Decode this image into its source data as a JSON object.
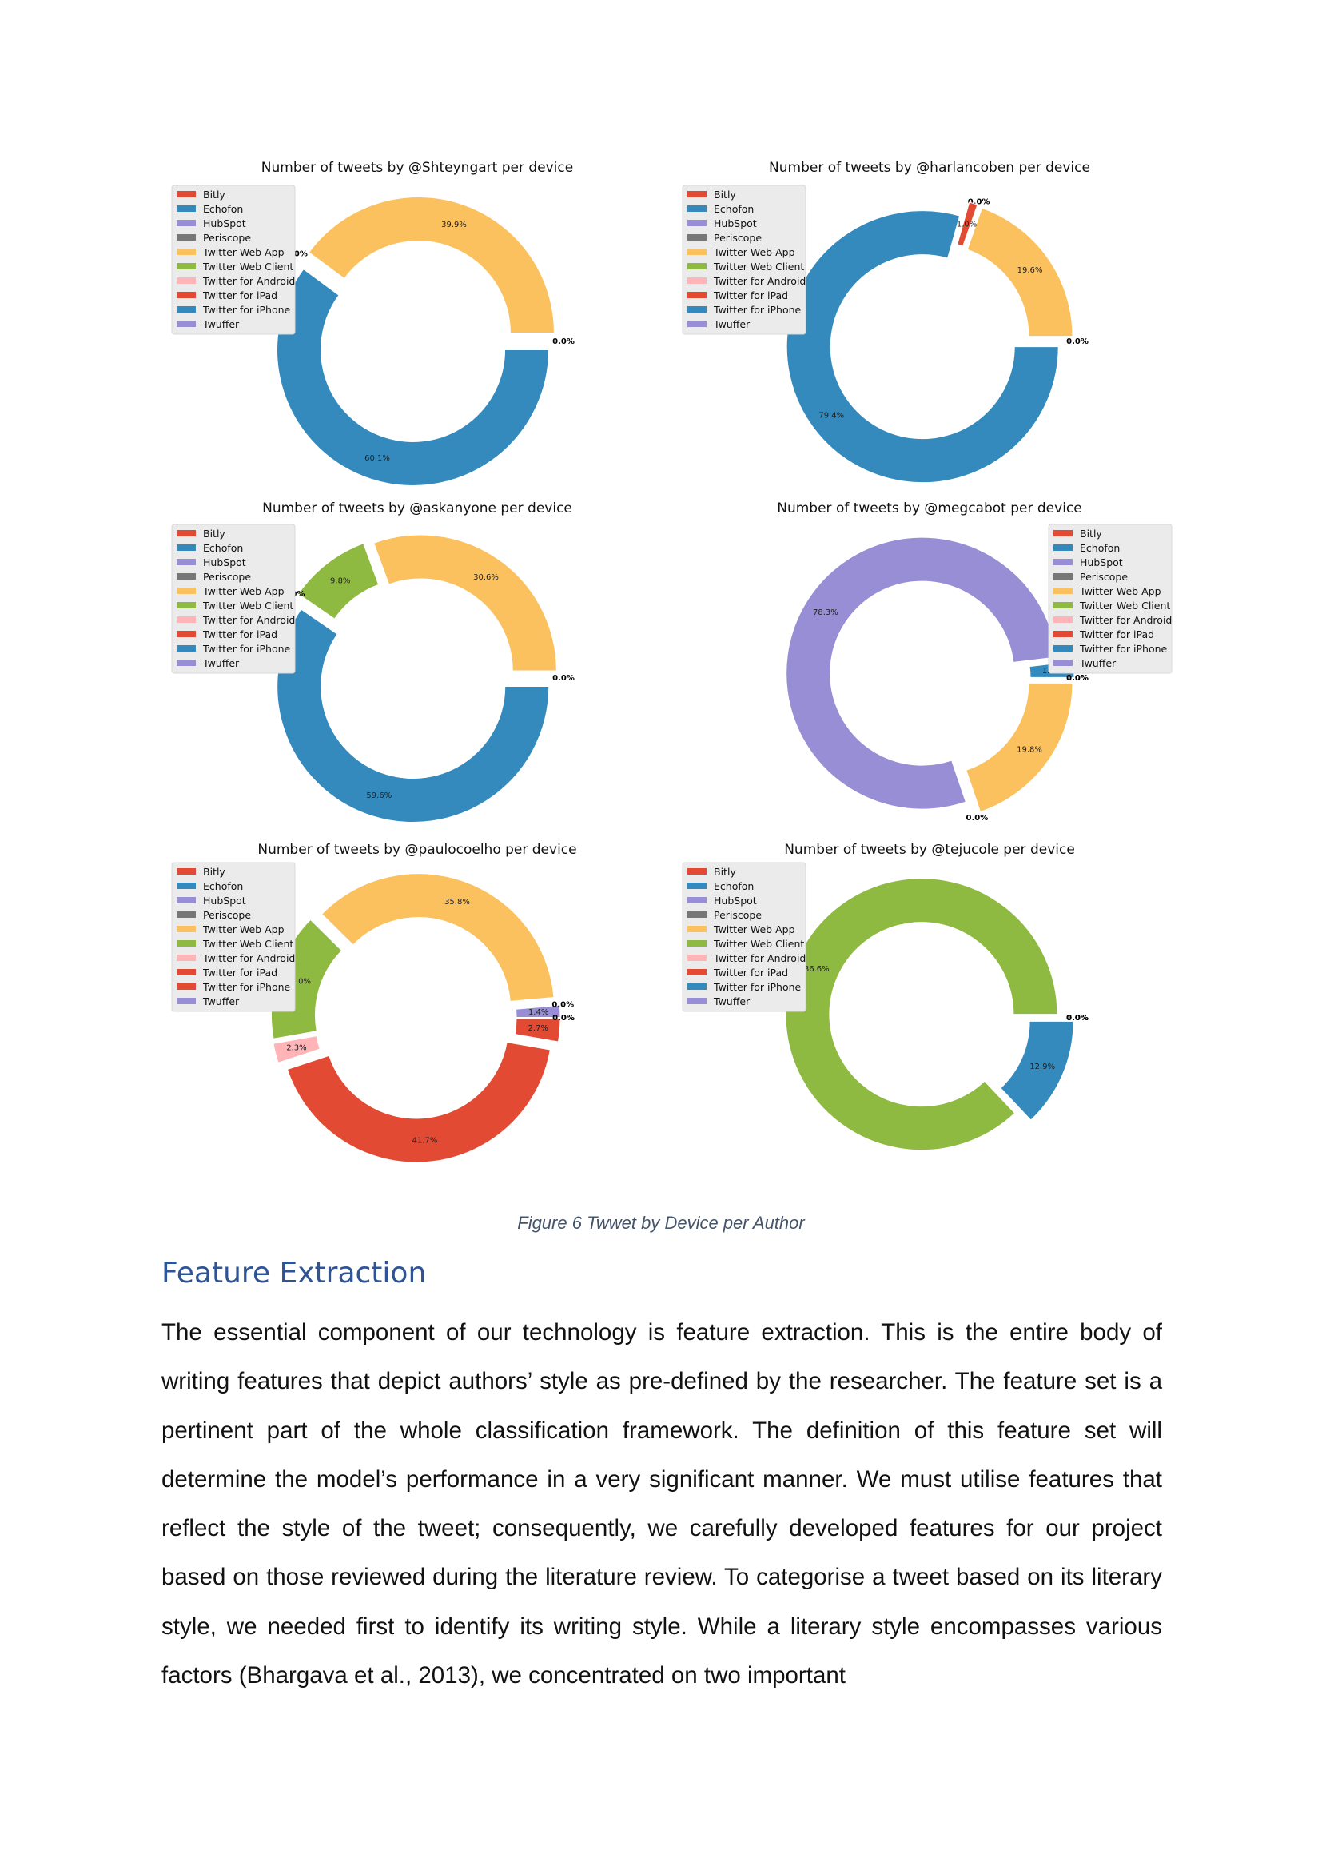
{
  "chart_data": [
    {
      "type": "pie",
      "title": "Number of tweets by @Shteyngart per device",
      "legend_position": "top-left",
      "slices": [
        {
          "label": "Bitly",
          "value": 0,
          "color": "#e24a33",
          "pct_text": ""
        },
        {
          "label": "Echofon",
          "value": 0,
          "color": "#348abd",
          "pct_text": ""
        },
        {
          "label": "HubSpot",
          "value": 0,
          "color": "#988ed5",
          "pct_text": ""
        },
        {
          "label": "Periscope",
          "value": 0,
          "color": "#777777",
          "pct_text": ""
        },
        {
          "label": "Twitter Web App",
          "value": 39.9,
          "color": "#fbc15e",
          "pct_text": "39.9%"
        },
        {
          "label": "Twitter Web Client",
          "value": 0,
          "color": "#8eba42",
          "pct_text": "0.0%"
        },
        {
          "label": "Twitter for Android",
          "value": 0,
          "color": "#ffb5b8",
          "pct_text": ""
        },
        {
          "label": "Twitter for iPad",
          "value": 0,
          "color": "#e24a33",
          "pct_text": ""
        },
        {
          "label": "Twitter for iPhone",
          "value": 60.1,
          "color": "#348abd",
          "pct_text": "60.1%"
        },
        {
          "label": "Twuffer",
          "value": 0,
          "color": "#988ed5",
          "pct_text": "0.0%"
        }
      ]
    },
    {
      "type": "pie",
      "title": "Number of tweets by @harlancoben  per device",
      "legend_position": "top-left",
      "slices": [
        {
          "label": "Bitly",
          "value": 0,
          "color": "#e24a33",
          "pct_text": ""
        },
        {
          "label": "Echofon",
          "value": 0,
          "color": "#348abd",
          "pct_text": ""
        },
        {
          "label": "HubSpot",
          "value": 0,
          "color": "#988ed5",
          "pct_text": ""
        },
        {
          "label": "Periscope",
          "value": 0,
          "color": "#777777",
          "pct_text": ""
        },
        {
          "label": "Twitter Web App",
          "value": 19.6,
          "color": "#fbc15e",
          "pct_text": "19.6%"
        },
        {
          "label": "Twitter Web Client",
          "value": 0,
          "color": "#8eba42",
          "pct_text": "0.0%"
        },
        {
          "label": "Twitter for Android",
          "value": 0,
          "color": "#ffb5b8",
          "pct_text": ""
        },
        {
          "label": "Twitter for iPad",
          "value": 1.0,
          "color": "#e24a33",
          "pct_text": "1.0%"
        },
        {
          "label": "Twitter for iPhone",
          "value": 79.4,
          "color": "#348abd",
          "pct_text": "79.4%"
        },
        {
          "label": "Twuffer",
          "value": 0,
          "color": "#988ed5",
          "pct_text": "0.0%"
        }
      ]
    },
    {
      "type": "pie",
      "title": "Number of tweets by @askanyone per device",
      "legend_position": "top-left",
      "slices": [
        {
          "label": "Bitly",
          "value": 0,
          "color": "#e24a33",
          "pct_text": ""
        },
        {
          "label": "Echofon",
          "value": 0,
          "color": "#348abd",
          "pct_text": ""
        },
        {
          "label": "HubSpot",
          "value": 0,
          "color": "#988ed5",
          "pct_text": ""
        },
        {
          "label": "Periscope",
          "value": 0,
          "color": "#777777",
          "pct_text": ""
        },
        {
          "label": "Twitter Web App",
          "value": 30.6,
          "color": "#fbc15e",
          "pct_text": "30.6%"
        },
        {
          "label": "Twitter Web Client",
          "value": 9.8,
          "color": "#8eba42",
          "pct_text": "9.8%"
        },
        {
          "label": "Twitter for Android",
          "value": 0,
          "color": "#ffb5b8",
          "pct_text": ""
        },
        {
          "label": "Twitter for iPad",
          "value": 0,
          "color": "#e24a33",
          "pct_text": "0.0%"
        },
        {
          "label": "Twitter for iPhone",
          "value": 59.6,
          "color": "#348abd",
          "pct_text": "59.6%"
        },
        {
          "label": "Twuffer",
          "value": 0,
          "color": "#988ed5",
          "pct_text": "0.0%"
        }
      ]
    },
    {
      "type": "pie",
      "title": "Number of tweets by @megcabot per device",
      "legend_position": "top-right",
      "slices": [
        {
          "label": "Bitly",
          "value": 0,
          "color": "#e24a33",
          "pct_text": ""
        },
        {
          "label": "Echofon",
          "value": 1.9,
          "color": "#348abd",
          "pct_text": "1.9%"
        },
        {
          "label": "HubSpot",
          "value": 78.3,
          "color": "#988ed5",
          "pct_text": "78.3%"
        },
        {
          "label": "Periscope",
          "value": 0,
          "color": "#777777",
          "pct_text": "0.0%"
        },
        {
          "label": "Twitter Web App",
          "value": 19.8,
          "color": "#fbc15e",
          "pct_text": "19.8%"
        },
        {
          "label": "Twitter Web Client",
          "value": 0,
          "color": "#8eba42",
          "pct_text": "0.0%"
        },
        {
          "label": "Twitter for Android",
          "value": 0,
          "color": "#ffb5b8",
          "pct_text": ""
        },
        {
          "label": "Twitter for iPad",
          "value": 0,
          "color": "#e24a33",
          "pct_text": "0.0%"
        },
        {
          "label": "Twitter for iPhone",
          "value": 0,
          "color": "#348abd",
          "pct_text": ""
        },
        {
          "label": "Twuffer",
          "value": 0,
          "color": "#988ed5",
          "pct_text": ""
        }
      ]
    },
    {
      "type": "pie",
      "title": "Number of tweets by @paulocoelho per device",
      "legend_position": "top-left",
      "slices": [
        {
          "label": "Bitly",
          "value": 0,
          "color": "#e24a33",
          "pct_text": "0.0%"
        },
        {
          "label": "Echofon",
          "value": 0,
          "color": "#348abd",
          "pct_text": ""
        },
        {
          "label": "HubSpot",
          "value": 1.4,
          "color": "#988ed5",
          "pct_text": "1.4%"
        },
        {
          "label": "Periscope",
          "value": 0,
          "color": "#777777",
          "pct_text": "0.0%"
        },
        {
          "label": "Twitter Web App",
          "value": 35.8,
          "color": "#fbc15e",
          "pct_text": "35.8%"
        },
        {
          "label": "Twitter Web Client",
          "value": 15.0,
          "color": "#8eba42",
          "pct_text": "15.0%"
        },
        {
          "label": "Twitter for Android",
          "value": 2.3,
          "color": "#ffb5b8",
          "pct_text": "2.3%"
        },
        {
          "label": "Twitter for iPad",
          "value": 41.7,
          "color": "#e24a33",
          "pct_text": "41.7%"
        },
        {
          "label": "Twitter for iPhone",
          "value": 2.7,
          "color": "#e24a33",
          "pct_text": "2.7%"
        },
        {
          "label": "Twuffer",
          "value": 0,
          "color": "#988ed5",
          "pct_text": "0.0%"
        }
      ]
    },
    {
      "type": "pie",
      "title": "Number of tweets by @tejucole per device",
      "legend_position": "top-left",
      "slices": [
        {
          "label": "Bitly",
          "value": 0,
          "color": "#e24a33",
          "pct_text": "0.0%"
        },
        {
          "label": "Echofon",
          "value": 0,
          "color": "#348abd",
          "pct_text": "0.0%"
        },
        {
          "label": "HubSpot",
          "value": 0,
          "color": "#988ed5",
          "pct_text": "0.0%"
        },
        {
          "label": "Periscope",
          "value": 0,
          "color": "#777777",
          "pct_text": ""
        },
        {
          "label": "Twitter Web App",
          "value": 0,
          "color": "#fbc15e",
          "pct_text": ""
        },
        {
          "label": "Twitter Web Client",
          "value": 86.6,
          "color": "#8eba42",
          "pct_text": "86.6%"
        },
        {
          "label": "Twitter for Android",
          "value": 0,
          "color": "#ffb5b8",
          "pct_text": ""
        },
        {
          "label": "Twitter for iPad",
          "value": 0,
          "color": "#e24a33",
          "pct_text": ""
        },
        {
          "label": "Twitter for iPhone",
          "value": 12.9,
          "color": "#348abd",
          "pct_text": "12.9%"
        },
        {
          "label": "Twuffer",
          "value": 0,
          "color": "#988ed5",
          "pct_text": "0.0%"
        }
      ]
    }
  ],
  "caption": "Figure 6 Twwet by Device per Author",
  "section_heading": "Feature Extraction",
  "body_text": "The essential component of our technology is feature extraction. This is the entire body of writing features that depict authors’ style as pre-defined by the researcher. The feature set is a pertinent part of the whole classification framework. The definition of this feature set will determine the model’s performance in a very significant manner. We must utilise features that reflect the style of the tweet; consequently, we carefully developed features for our project based on those reviewed during the literature review. To categorise a tweet based on its literary style, we needed first to identify its writing style. While a literary style encompasses various factors (Bhargava et al., 2013), we concentrated on two important"
}
